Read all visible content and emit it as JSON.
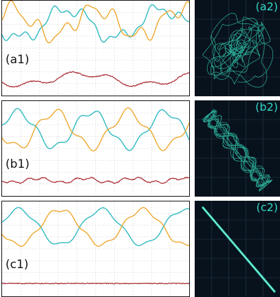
{
  "colors": {
    "cyan_trace": "#2bb8c0",
    "orange_trace": "#eea62a",
    "red_trace": "#a8262c",
    "scope_background": "#08121d",
    "scope_trace": "#39e8c8",
    "grid": "#9aa0a6"
  },
  "rows": [
    {
      "waveform_label": "(a1)",
      "scope_label": "(a2)",
      "scope_pattern": "square"
    },
    {
      "waveform_label": "(b1)",
      "scope_label": "(b2)",
      "scope_pattern": "band"
    },
    {
      "waveform_label": "(c1)",
      "scope_label": "(c2)",
      "scope_pattern": "line"
    }
  ]
}
